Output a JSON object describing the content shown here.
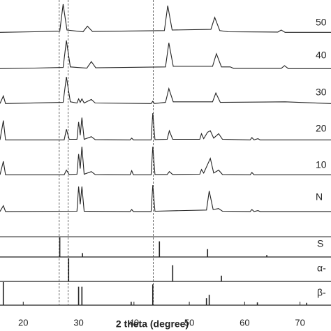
{
  "chart_data": {
    "type": "line",
    "x_label": "2 theta (degree)",
    "xlim": [
      15.8,
      75.6
    ],
    "xticks": [
      20,
      30,
      40,
      50,
      60,
      70
    ],
    "color": "#222222",
    "reference_lines": [
      26.5,
      28.1,
      43.5
    ],
    "series": [
      {
        "name": "50",
        "x": [
          15.8,
          22,
          26.6,
          27.2,
          27.9,
          30.8,
          31.6,
          32.5,
          45.5,
          46.1,
          46.9,
          53.9,
          54.6,
          55.5,
          57,
          66,
          66.6,
          67.3,
          75.6
        ],
        "values": [
          4,
          6,
          8,
          100,
          12,
          6,
          25,
          7,
          10,
          95,
          12,
          14,
          55,
          10,
          6,
          5,
          12,
          4,
          4
        ]
      },
      {
        "name": "40",
        "x": [
          15.8,
          22,
          27.2,
          27.8,
          28.5,
          31.5,
          32.3,
          33.1,
          45.7,
          46.3,
          47.1,
          54.2,
          54.9,
          55.8,
          57.4,
          58,
          66.6,
          67.2,
          67.9,
          75.6
        ],
        "values": [
          4,
          6,
          8,
          100,
          10,
          6,
          28,
          7,
          10,
          92,
          12,
          12,
          55,
          10,
          10,
          5,
          5,
          14,
          4,
          4
        ]
      },
      {
        "name": "30",
        "x": [
          15.8,
          16.4,
          16.8,
          27.2,
          27.8,
          28.5,
          29.7,
          30,
          30.3,
          30.6,
          31,
          32.3,
          33,
          43.1,
          43.4,
          43.7,
          45.7,
          46.3,
          47.1,
          54.2,
          54.8,
          55.6,
          67.3,
          75.6
        ],
        "values": [
          4,
          30,
          4,
          8,
          95,
          10,
          6,
          20,
          8,
          20,
          6,
          18,
          6,
          4,
          12,
          4,
          8,
          55,
          10,
          10,
          40,
          8,
          10,
          4
        ]
      },
      {
        "name": "20",
        "x": [
          15.8,
          16.4,
          16.8,
          27.4,
          27.8,
          28.3,
          29.7,
          30,
          30.3,
          30.6,
          31,
          32.3,
          33,
          39.3,
          39.6,
          39.9,
          43.1,
          43.4,
          43.8,
          46,
          46.4,
          47,
          51.9,
          52.2,
          52.6,
          53.3,
          53.8,
          54.4,
          55.3,
          56,
          61,
          61.3,
          61.7,
          62.4,
          62.8,
          75.6
        ],
        "values": [
          4,
          70,
          4,
          4,
          40,
          6,
          6,
          65,
          20,
          80,
          6,
          15,
          5,
          4,
          10,
          4,
          4,
          95,
          5,
          6,
          35,
          6,
          6,
          25,
          8,
          30,
          35,
          10,
          25,
          6,
          4,
          12,
          4,
          8,
          4,
          4
        ]
      },
      {
        "name": "10",
        "x": [
          15.8,
          16.4,
          16.8,
          27.4,
          27.8,
          28.3,
          29.7,
          30,
          30.3,
          30.6,
          31,
          32.3,
          33,
          39.3,
          39.6,
          39.9,
          43.1,
          43.4,
          43.8,
          46,
          46.4,
          47,
          51.9,
          52.2,
          52.6,
          53.8,
          54.4,
          55.3,
          56,
          61,
          61.3,
          61.7,
          75.6
        ],
        "values": [
          4,
          50,
          4,
          4,
          20,
          5,
          6,
          75,
          25,
          100,
          6,
          15,
          5,
          4,
          18,
          4,
          4,
          100,
          5,
          5,
          15,
          5,
          6,
          22,
          10,
          60,
          10,
          20,
          5,
          4,
          12,
          4,
          4
        ]
      },
      {
        "name": "N",
        "x": [
          15.8,
          16.4,
          16.8,
          29.7,
          30,
          30.3,
          30.6,
          31,
          39.3,
          39.6,
          39.9,
          43.1,
          43.4,
          43.8,
          53.1,
          53.6,
          54.3,
          55.3,
          56,
          61,
          61.3,
          61.7,
          62.4,
          62.8,
          75.6
        ],
        "values": [
          5,
          25,
          5,
          6,
          90,
          30,
          90,
          6,
          5,
          12,
          5,
          5,
          95,
          6,
          10,
          75,
          12,
          15,
          6,
          5,
          12,
          5,
          8,
          5,
          5
        ]
      }
    ],
    "references": [
      {
        "name": "S",
        "x": [
          26.6,
          30.7,
          44.6,
          53.3,
          64.0
        ],
        "values": [
          100,
          20,
          80,
          40,
          10
        ]
      },
      {
        "name": "α-",
        "x": [
          28.2,
          47.0,
          55.8
        ],
        "values": [
          100,
          70,
          25
        ]
      },
      {
        "name": "β-",
        "x": [
          16.4,
          30.0,
          30.6,
          39.5,
          43.4,
          53.1,
          53.6,
          62.3,
          71.2
        ],
        "values": [
          100,
          80,
          80,
          15,
          90,
          30,
          45,
          12,
          10
        ]
      }
    ]
  }
}
